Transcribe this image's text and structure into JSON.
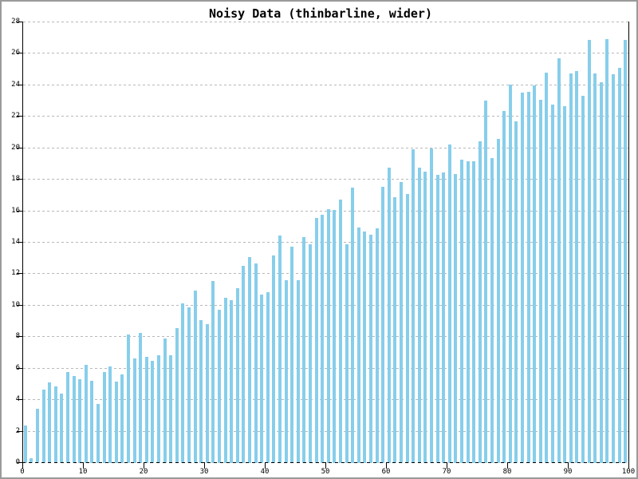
{
  "window": {
    "background": "#ffffff",
    "border_color": "#9a9a9a"
  },
  "chart_data": {
    "type": "bar",
    "title": "Noisy Data (thinbarline, wider)",
    "xlabel": "",
    "ylabel": "",
    "xlim": [
      0,
      100
    ],
    "ylim": [
      0,
      28
    ],
    "x_ticks": [
      0,
      10,
      20,
      30,
      40,
      50,
      60,
      70,
      80,
      90,
      100
    ],
    "y_ticks": [
      0,
      2,
      4,
      6,
      8,
      10,
      12,
      14,
      16,
      18,
      20,
      22,
      24,
      26,
      28
    ],
    "grid": true,
    "legend": false,
    "bar_color": "#87CEEB",
    "gridline_color": "#b8b8b8",
    "axis_color": "#000000",
    "x_start": 0.5,
    "x_step": 1,
    "values": [
      2.35,
      0.25,
      3.4,
      4.6,
      5.05,
      4.8,
      4.35,
      5.75,
      5.5,
      5.3,
      6.2,
      5.15,
      3.7,
      5.75,
      6.1,
      5.1,
      5.6,
      8.1,
      6.6,
      8.2,
      6.7,
      6.45,
      6.8,
      7.85,
      6.8,
      8.5,
      10.1,
      9.85,
      10.9,
      9.05,
      8.8,
      11.5,
      9.7,
      10.45,
      10.3,
      11.05,
      12.5,
      13.05,
      12.65,
      10.65,
      10.8,
      13.15,
      14.4,
      11.55,
      13.7,
      11.55,
      14.3,
      13.85,
      15.5,
      15.7,
      16.1,
      16.05,
      16.7,
      13.85,
      17.45,
      14.9,
      14.65,
      14.45,
      14.85,
      17.5,
      18.7,
      16.85,
      17.8,
      17.05,
      19.9,
      18.7,
      18.45,
      19.95,
      18.25,
      18.4,
      20.2,
      18.3,
      19.25,
      19.1,
      19.1,
      20.4,
      23.0,
      19.35,
      20.55,
      22.3,
      24.0,
      21.65,
      23.5,
      23.55,
      23.95,
      23.05,
      24.75,
      22.7,
      25.65,
      22.6,
      24.7,
      24.85,
      23.3,
      26.85,
      24.7,
      24.15,
      26.9,
      24.65,
      25.05,
      26.85
    ]
  }
}
